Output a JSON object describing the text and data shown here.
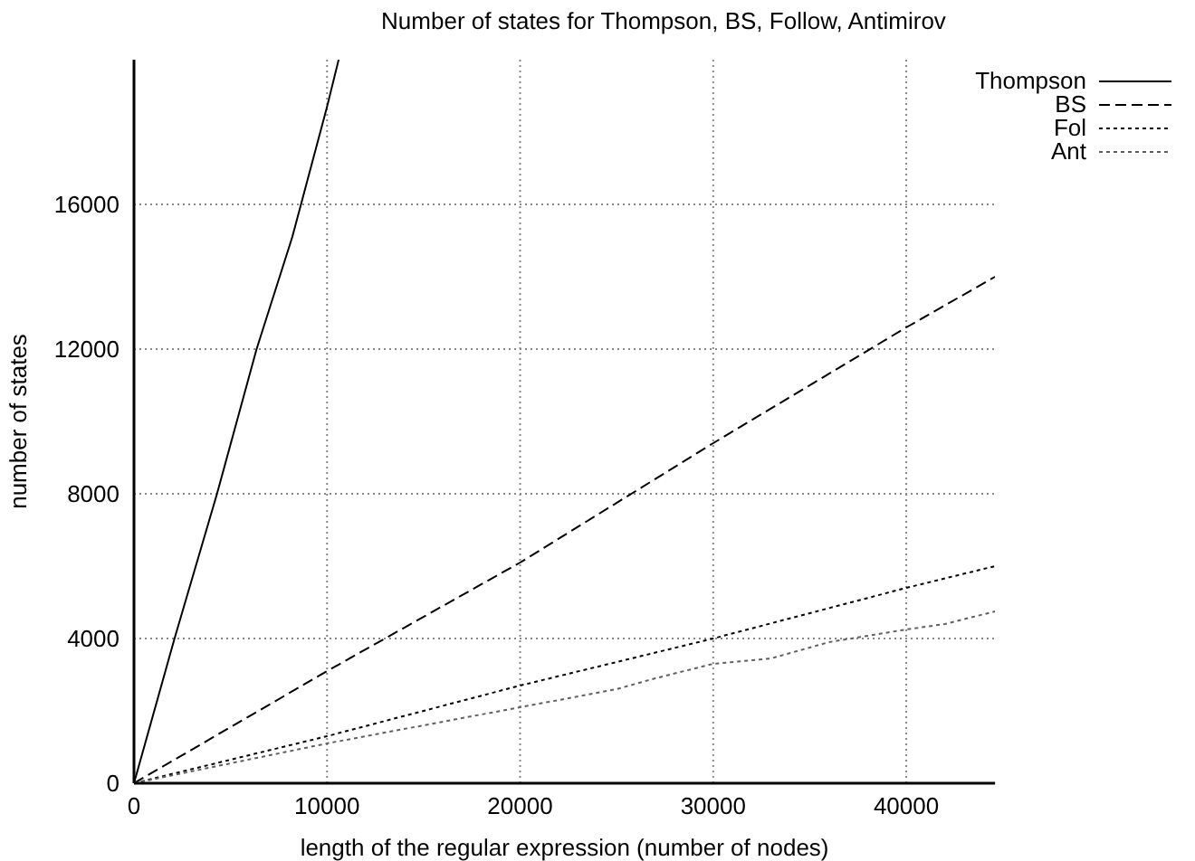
{
  "chart_data": {
    "type": "line",
    "title": "Number of states for Thompson, BS, Follow, Antimirov",
    "xlabel": "length of the regular expression (number of nodes)",
    "ylabel": "number of states",
    "xlim": [
      0,
      44600
    ],
    "xticks": [
      0,
      10000,
      20000,
      30000,
      40000
    ],
    "ylim": [
      0,
      20000
    ],
    "yticks": [
      0,
      4000,
      8000,
      12000,
      16000
    ],
    "grid": true,
    "legend": "top right",
    "series": [
      {
        "name": "Thompson",
        "color": "#000000",
        "line_style": "solid",
        "x": [
          0,
          2100,
          4300,
          6350,
          8200,
          10000,
          10600
        ],
        "values": [
          0,
          4000,
          8000,
          12000,
          15100,
          18700,
          20000
        ]
      },
      {
        "name": "BS",
        "color": "#000000",
        "line_style": "dashed",
        "x": [
          0,
          10000,
          20000,
          30000,
          40000,
          44600
        ],
        "values": [
          0,
          3100,
          6100,
          9400,
          12600,
          14000
        ]
      },
      {
        "name": "Fol",
        "color": "#000000",
        "line_style": "dotted",
        "x": [
          0,
          10000,
          20000,
          30000,
          40000,
          44600
        ],
        "values": [
          0,
          1300,
          2700,
          4000,
          5400,
          6000
        ]
      },
      {
        "name": "Ant",
        "color": "#606060",
        "line_style": "dotted",
        "x": [
          0,
          5000,
          10000,
          15000,
          20000,
          22000,
          25000,
          27000,
          30000,
          33000,
          36000,
          40000,
          42000,
          44600
        ],
        "values": [
          0,
          550,
          1100,
          1600,
          2100,
          2300,
          2600,
          2900,
          3300,
          3450,
          3900,
          4250,
          4400,
          4750
        ]
      }
    ]
  }
}
